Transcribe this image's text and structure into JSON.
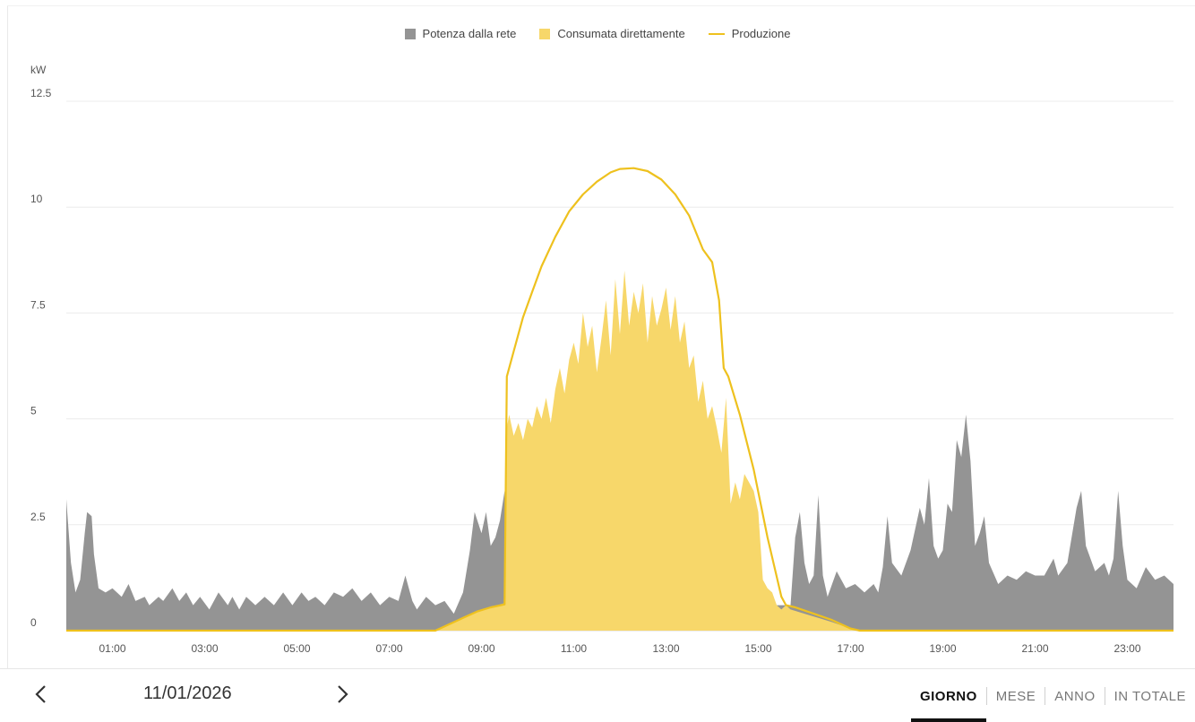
{
  "legend": {
    "grid": {
      "label": "Potenza dalla rete",
      "color": "#949494"
    },
    "direct": {
      "label": "Consumata direttamente",
      "color": "#f7d76a"
    },
    "production": {
      "label": "Produzione",
      "color": "#eec11e"
    }
  },
  "chart_data": {
    "type": "area",
    "ylabel": "kW",
    "ylim": [
      0,
      12.5
    ],
    "yticks": [
      "0",
      "2.5",
      "5",
      "7.5",
      "10",
      "12.5"
    ],
    "ytick_values": [
      0,
      2.5,
      5,
      7.5,
      10,
      12.5
    ],
    "xlim": [
      0,
      24
    ],
    "xticks": [
      "01:00",
      "03:00",
      "05:00",
      "07:00",
      "09:00",
      "11:00",
      "13:00",
      "15:00",
      "17:00",
      "19:00",
      "21:00",
      "23:00"
    ],
    "xtick_values": [
      1,
      3,
      5,
      7,
      9,
      11,
      13,
      15,
      17,
      19,
      21,
      23
    ],
    "grid": true,
    "legend_position": "top",
    "series": [
      {
        "name": "Potenza dalla rete",
        "type": "area",
        "points": [
          [
            0.0,
            3.1
          ],
          [
            0.1,
            1.6
          ],
          [
            0.2,
            0.9
          ],
          [
            0.3,
            1.2
          ],
          [
            0.4,
            2.3
          ],
          [
            0.45,
            2.8
          ],
          [
            0.55,
            2.7
          ],
          [
            0.6,
            1.8
          ],
          [
            0.7,
            1.0
          ],
          [
            0.85,
            0.9
          ],
          [
            1.0,
            1.0
          ],
          [
            1.2,
            0.8
          ],
          [
            1.35,
            1.1
          ],
          [
            1.5,
            0.7
          ],
          [
            1.7,
            0.8
          ],
          [
            1.8,
            0.6
          ],
          [
            2.0,
            0.8
          ],
          [
            2.1,
            0.7
          ],
          [
            2.3,
            1.0
          ],
          [
            2.45,
            0.7
          ],
          [
            2.6,
            0.9
          ],
          [
            2.75,
            0.6
          ],
          [
            2.9,
            0.8
          ],
          [
            3.1,
            0.5
          ],
          [
            3.3,
            0.9
          ],
          [
            3.5,
            0.6
          ],
          [
            3.6,
            0.8
          ],
          [
            3.75,
            0.5
          ],
          [
            3.9,
            0.8
          ],
          [
            4.1,
            0.6
          ],
          [
            4.3,
            0.8
          ],
          [
            4.5,
            0.6
          ],
          [
            4.7,
            0.9
          ],
          [
            4.9,
            0.6
          ],
          [
            5.1,
            0.9
          ],
          [
            5.25,
            0.7
          ],
          [
            5.4,
            0.8
          ],
          [
            5.6,
            0.6
          ],
          [
            5.8,
            0.9
          ],
          [
            6.0,
            0.8
          ],
          [
            6.2,
            1.0
          ],
          [
            6.4,
            0.7
          ],
          [
            6.6,
            0.9
          ],
          [
            6.8,
            0.6
          ],
          [
            7.0,
            0.8
          ],
          [
            7.2,
            0.7
          ],
          [
            7.35,
            1.3
          ],
          [
            7.5,
            0.7
          ],
          [
            7.6,
            0.5
          ],
          [
            7.8,
            0.8
          ],
          [
            8.0,
            0.6
          ],
          [
            8.2,
            0.7
          ],
          [
            8.4,
            0.4
          ],
          [
            8.6,
            0.9
          ],
          [
            8.75,
            1.9
          ],
          [
            8.85,
            2.8
          ],
          [
            9.0,
            2.3
          ],
          [
            9.1,
            2.8
          ],
          [
            9.2,
            2.0
          ],
          [
            9.3,
            2.2
          ],
          [
            9.4,
            2.6
          ],
          [
            9.5,
            3.3
          ],
          [
            9.55,
            0.6
          ],
          [
            23.5,
            0.6
          ],
          [
            23.5,
            0.0
          ],
          [
            0.0,
            0.0
          ]
        ]
      },
      {
        "name": "Potenza dalla rete (sera)",
        "type": "area",
        "points": [
          [
            15.65,
            0.0
          ],
          [
            15.7,
            0.6
          ],
          [
            15.8,
            2.2
          ],
          [
            15.9,
            2.8
          ],
          [
            16.0,
            1.6
          ],
          [
            16.1,
            1.1
          ],
          [
            16.2,
            1.3
          ],
          [
            16.3,
            3.2
          ],
          [
            16.4,
            1.3
          ],
          [
            16.5,
            0.8
          ],
          [
            16.7,
            1.4
          ],
          [
            16.9,
            1.0
          ],
          [
            17.1,
            1.1
          ],
          [
            17.3,
            0.9
          ],
          [
            17.5,
            1.1
          ],
          [
            17.6,
            0.9
          ],
          [
            17.7,
            1.5
          ],
          [
            17.8,
            2.7
          ],
          [
            17.9,
            1.6
          ],
          [
            18.1,
            1.3
          ],
          [
            18.3,
            1.9
          ],
          [
            18.5,
            2.9
          ],
          [
            18.6,
            2.5
          ],
          [
            18.7,
            3.6
          ],
          [
            18.8,
            2.0
          ],
          [
            18.9,
            1.7
          ],
          [
            19.0,
            1.9
          ],
          [
            19.1,
            3.0
          ],
          [
            19.2,
            2.8
          ],
          [
            19.3,
            4.5
          ],
          [
            19.4,
            4.1
          ],
          [
            19.5,
            5.1
          ],
          [
            19.6,
            4.0
          ],
          [
            19.7,
            2.0
          ],
          [
            19.8,
            2.3
          ],
          [
            19.9,
            2.7
          ],
          [
            20.0,
            1.6
          ],
          [
            20.2,
            1.1
          ],
          [
            20.4,
            1.3
          ],
          [
            20.6,
            1.2
          ],
          [
            20.8,
            1.4
          ],
          [
            21.0,
            1.3
          ],
          [
            21.2,
            1.3
          ],
          [
            21.4,
            1.7
          ],
          [
            21.5,
            1.3
          ],
          [
            21.7,
            1.6
          ],
          [
            21.9,
            2.9
          ],
          [
            22.0,
            3.3
          ],
          [
            22.1,
            2.0
          ],
          [
            22.3,
            1.4
          ],
          [
            22.5,
            1.6
          ],
          [
            22.6,
            1.3
          ],
          [
            22.7,
            1.7
          ],
          [
            22.8,
            3.3
          ],
          [
            22.9,
            2.0
          ],
          [
            23.0,
            1.2
          ],
          [
            23.2,
            1.0
          ],
          [
            23.4,
            1.5
          ],
          [
            23.6,
            1.2
          ],
          [
            23.8,
            1.3
          ],
          [
            24.0,
            1.1
          ],
          [
            24.0,
            0.0
          ]
        ]
      },
      {
        "name": "Consumata direttamente",
        "type": "area",
        "points": [
          [
            8.0,
            0.0
          ],
          [
            8.3,
            0.15
          ],
          [
            8.6,
            0.3
          ],
          [
            8.9,
            0.45
          ],
          [
            9.2,
            0.55
          ],
          [
            9.5,
            0.65
          ],
          [
            9.55,
            4.8
          ],
          [
            9.6,
            5.1
          ],
          [
            9.7,
            4.6
          ],
          [
            9.8,
            4.9
          ],
          [
            9.9,
            4.5
          ],
          [
            10.0,
            5.0
          ],
          [
            10.1,
            4.8
          ],
          [
            10.2,
            5.3
          ],
          [
            10.3,
            5.0
          ],
          [
            10.4,
            5.5
          ],
          [
            10.5,
            4.9
          ],
          [
            10.6,
            5.7
          ],
          [
            10.7,
            6.2
          ],
          [
            10.8,
            5.6
          ],
          [
            10.9,
            6.4
          ],
          [
            11.0,
            6.8
          ],
          [
            11.1,
            6.3
          ],
          [
            11.2,
            7.5
          ],
          [
            11.3,
            6.7
          ],
          [
            11.4,
            7.2
          ],
          [
            11.5,
            6.1
          ],
          [
            11.6,
            6.9
          ],
          [
            11.7,
            7.8
          ],
          [
            11.8,
            6.5
          ],
          [
            11.9,
            8.3
          ],
          [
            12.0,
            7.0
          ],
          [
            12.1,
            8.5
          ],
          [
            12.2,
            7.2
          ],
          [
            12.3,
            8.0
          ],
          [
            12.4,
            7.5
          ],
          [
            12.5,
            8.2
          ],
          [
            12.6,
            6.8
          ],
          [
            12.7,
            7.9
          ],
          [
            12.8,
            7.2
          ],
          [
            12.9,
            7.6
          ],
          [
            13.0,
            8.1
          ],
          [
            13.1,
            7.1
          ],
          [
            13.2,
            7.9
          ],
          [
            13.3,
            6.8
          ],
          [
            13.4,
            7.3
          ],
          [
            13.5,
            6.2
          ],
          [
            13.6,
            6.5
          ],
          [
            13.7,
            5.4
          ],
          [
            13.8,
            5.9
          ],
          [
            13.9,
            5.0
          ],
          [
            14.0,
            5.3
          ],
          [
            14.1,
            4.8
          ],
          [
            14.2,
            4.2
          ],
          [
            14.3,
            5.5
          ],
          [
            14.4,
            3.0
          ],
          [
            14.5,
            3.5
          ],
          [
            14.6,
            3.1
          ],
          [
            14.7,
            3.7
          ],
          [
            14.8,
            3.5
          ],
          [
            14.9,
            3.3
          ],
          [
            15.0,
            2.8
          ],
          [
            15.1,
            1.2
          ],
          [
            15.2,
            1.0
          ],
          [
            15.3,
            0.9
          ],
          [
            15.4,
            0.6
          ],
          [
            15.5,
            0.5
          ],
          [
            15.6,
            0.6
          ],
          [
            15.7,
            0.5
          ],
          [
            16.0,
            0.4
          ],
          [
            16.3,
            0.3
          ],
          [
            16.6,
            0.2
          ],
          [
            17.0,
            0.05
          ],
          [
            17.2,
            0.0
          ]
        ]
      },
      {
        "name": "Produzione",
        "type": "line",
        "points": [
          [
            0.0,
            0.0
          ],
          [
            8.0,
            0.0
          ],
          [
            8.3,
            0.15
          ],
          [
            8.6,
            0.3
          ],
          [
            8.9,
            0.45
          ],
          [
            9.2,
            0.55
          ],
          [
            9.5,
            0.62
          ],
          [
            9.55,
            6.0
          ],
          [
            9.7,
            6.6
          ],
          [
            9.9,
            7.4
          ],
          [
            10.1,
            8.0
          ],
          [
            10.3,
            8.6
          ],
          [
            10.6,
            9.3
          ],
          [
            10.9,
            9.9
          ],
          [
            11.2,
            10.3
          ],
          [
            11.5,
            10.6
          ],
          [
            11.8,
            10.82
          ],
          [
            12.0,
            10.9
          ],
          [
            12.3,
            10.92
          ],
          [
            12.6,
            10.85
          ],
          [
            12.9,
            10.65
          ],
          [
            13.2,
            10.3
          ],
          [
            13.5,
            9.8
          ],
          [
            13.8,
            9.0
          ],
          [
            14.0,
            8.7
          ],
          [
            14.15,
            7.8
          ],
          [
            14.25,
            6.2
          ],
          [
            14.35,
            6.0
          ],
          [
            14.6,
            5.1
          ],
          [
            14.9,
            3.8
          ],
          [
            15.2,
            2.2
          ],
          [
            15.5,
            0.8
          ],
          [
            15.6,
            0.6
          ],
          [
            15.8,
            0.55
          ],
          [
            16.2,
            0.4
          ],
          [
            16.6,
            0.25
          ],
          [
            17.0,
            0.05
          ],
          [
            17.2,
            0.0
          ],
          [
            24.0,
            0.0
          ]
        ]
      }
    ]
  },
  "footer": {
    "date": "11/01/2026",
    "tabs": [
      "GIORNO",
      "MESE",
      "ANNO",
      "IN TOTALE"
    ],
    "active_tab": "GIORNO"
  }
}
